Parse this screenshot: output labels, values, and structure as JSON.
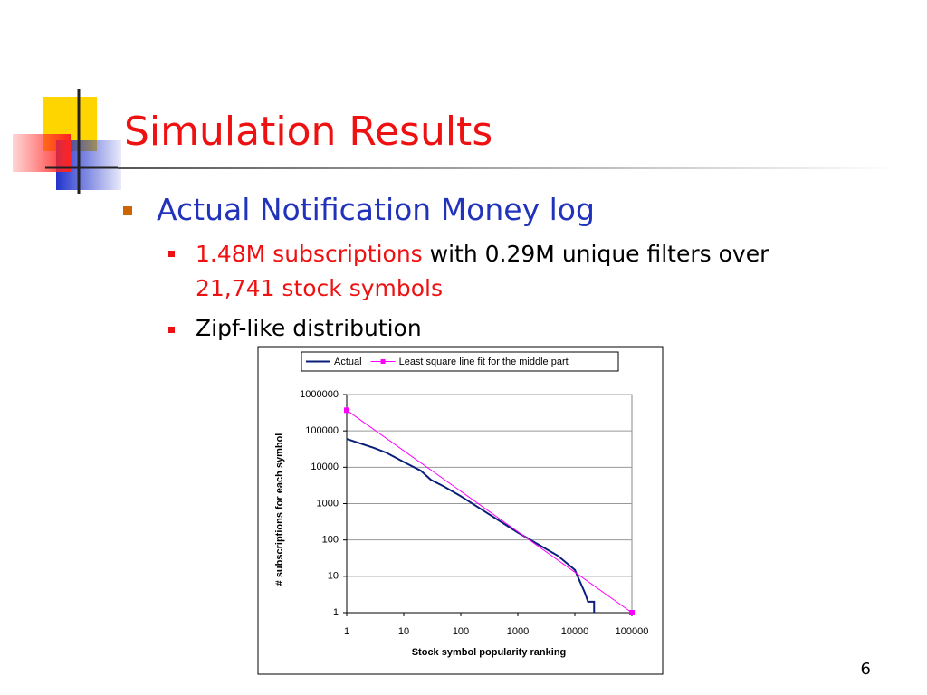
{
  "title": "Simulation Results",
  "bullet": "Actual Notification Money log",
  "sub_bullets": [
    {
      "runs": [
        {
          "text": "1.48M subscriptions",
          "color": "#ee1111"
        },
        {
          "text": " with 0.29M unique filters over",
          "color": "#000000"
        },
        {
          "text": "21,741 stock symbols",
          "color": "#ee1111"
        }
      ]
    },
    {
      "runs": [
        {
          "text": "Zipf-like distribution",
          "color": "#000000"
        }
      ]
    }
  ],
  "page_number": "6",
  "chart_data": {
    "type": "line",
    "xlabel": "Stock symbol popularity ranking",
    "ylabel": "# subscriptions for each symbol",
    "xscale": "log",
    "yscale": "log",
    "xlim": [
      1,
      100000
    ],
    "ylim": [
      1,
      1000000
    ],
    "xticks": [
      1,
      10,
      100,
      1000,
      10000,
      100000
    ],
    "yticks": [
      1,
      10,
      100,
      1000,
      10000,
      100000,
      1000000
    ],
    "grid": true,
    "legend": "top",
    "series": [
      {
        "name": "Actual",
        "color": "#0a1f7a",
        "markers": false,
        "x": [
          1,
          3,
          5,
          10,
          20,
          30,
          50,
          100,
          1000,
          5000,
          10000,
          15000,
          17000,
          21741,
          21741
        ],
        "values": [
          60000,
          34000,
          25000,
          14000,
          8000,
          4500,
          3000,
          1600,
          160,
          37,
          15,
          3.5,
          2,
          2,
          1
        ]
      },
      {
        "name": "Least square line fit for the middle part",
        "color": "#ff00ff",
        "markers": true,
        "x": [
          1,
          100000
        ],
        "values": [
          370000,
          1
        ]
      }
    ]
  }
}
